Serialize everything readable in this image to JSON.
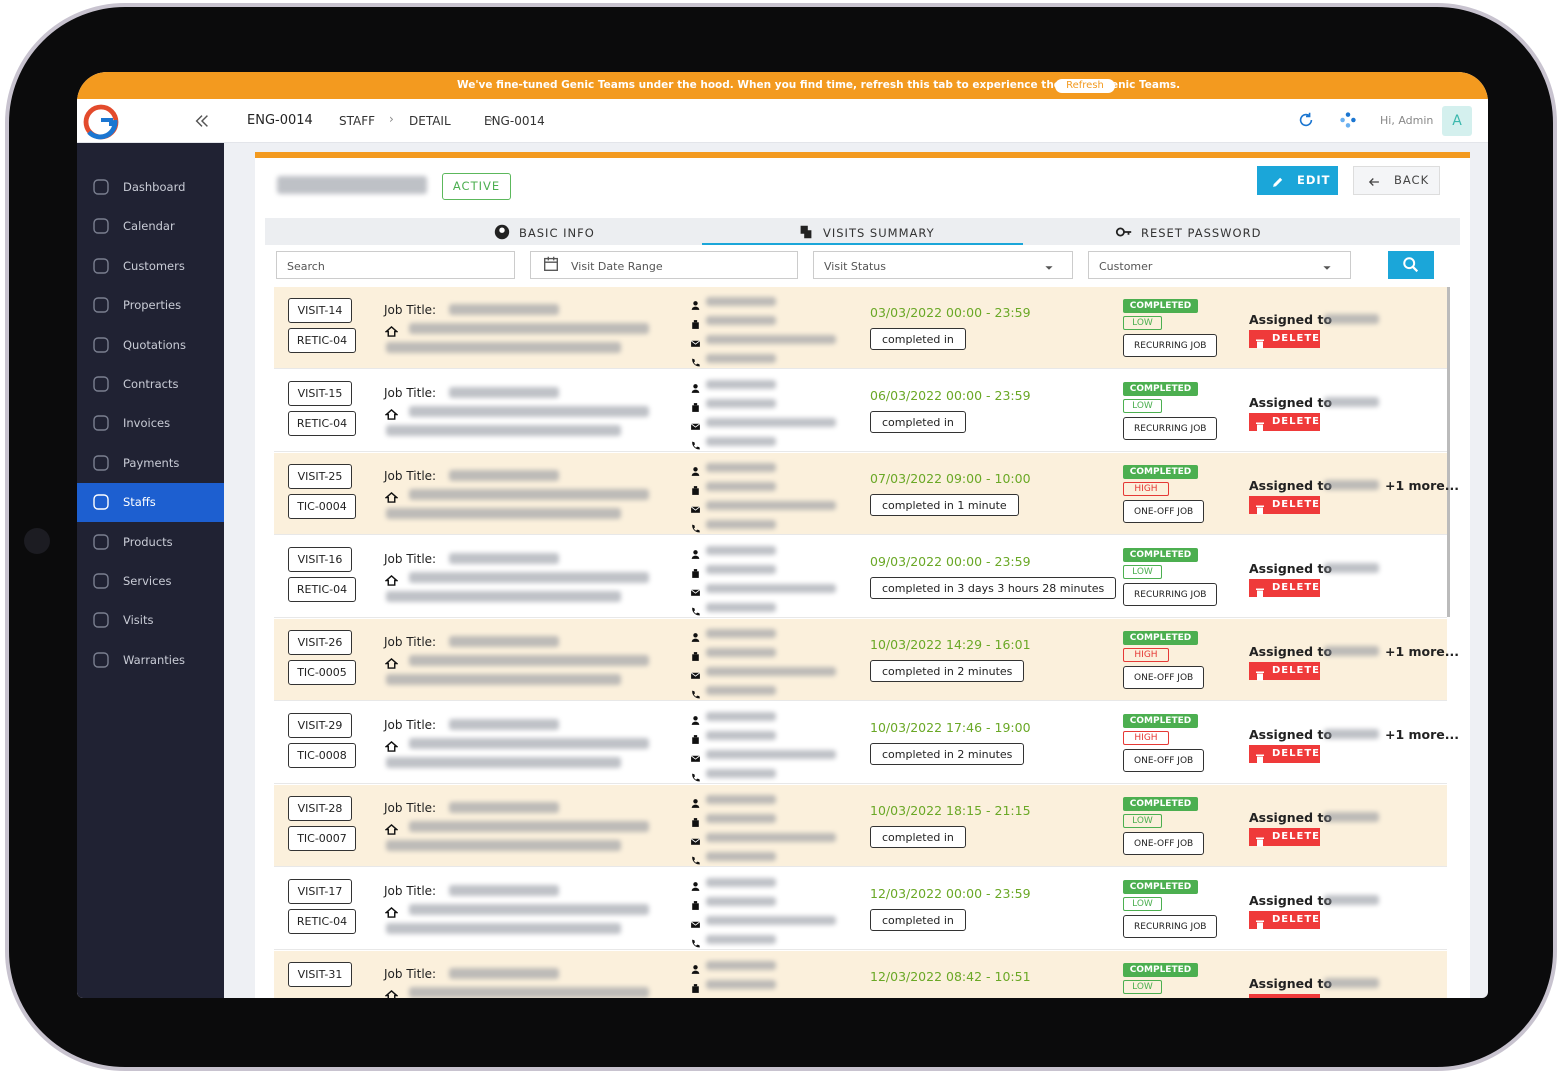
{
  "banner": {
    "message": "We've fine-tuned Genic Teams under the hood. When you find time, refresh this tab to experience the latest Genic Teams.",
    "button": "Refresh"
  },
  "header": {
    "code": "ENG-0014",
    "breadcrumb": [
      "STAFF",
      "DETAIL",
      "ENG-0014"
    ],
    "greeting": "Hi, Admin",
    "avatar": "A"
  },
  "sidebar": {
    "items": [
      "Dashboard",
      "Calendar",
      "Customers",
      "Properties",
      "Quotations",
      "Contracts",
      "Invoices",
      "Payments",
      "Staffs",
      "Products",
      "Services",
      "Visits",
      "Warranties"
    ],
    "active": "Staffs"
  },
  "profile": {
    "status": "ACTIVE",
    "edit": "EDIT",
    "back": "BACK"
  },
  "tabs": {
    "items": [
      "BASIC INFO",
      "VISITS SUMMARY",
      "RESET PASSWORD"
    ],
    "active": "VISITS SUMMARY"
  },
  "filters": {
    "search": "Search",
    "date_range": "Visit Date Range",
    "status": "Visit Status",
    "customer": "Customer"
  },
  "labels": {
    "job_title": "Job Title:",
    "assigned": "Assigned to",
    "delete": "DELETE"
  },
  "visits": [
    {
      "visit": "VISIT-14",
      "ref": "RETIC-04",
      "time": "03/03/2022 00:00 - 23:59",
      "duration": "completed in",
      "status": "COMPLETED",
      "priority": "LOW",
      "job_type": "RECURRING JOB"
    },
    {
      "visit": "VISIT-15",
      "ref": "RETIC-04",
      "time": "06/03/2022 00:00 - 23:59",
      "duration": "completed in",
      "status": "COMPLETED",
      "priority": "LOW",
      "job_type": "RECURRING JOB"
    },
    {
      "visit": "VISIT-25",
      "ref": "TIC-0004",
      "time": "07/03/2022 09:00 - 10:00",
      "duration": "completed in 1 minute",
      "status": "COMPLETED",
      "priority": "HIGH",
      "job_type": "ONE-OFF JOB",
      "more": "+1 more..."
    },
    {
      "visit": "VISIT-16",
      "ref": "RETIC-04",
      "time": "09/03/2022 00:00 - 23:59",
      "duration": "completed in 3 days 3 hours 28 minutes",
      "status": "COMPLETED",
      "priority": "LOW",
      "job_type": "RECURRING JOB"
    },
    {
      "visit": "VISIT-26",
      "ref": "TIC-0005",
      "time": "10/03/2022 14:29 - 16:01",
      "duration": "completed in 2 minutes",
      "status": "COMPLETED",
      "priority": "HIGH",
      "job_type": "ONE-OFF JOB",
      "more": "+1 more..."
    },
    {
      "visit": "VISIT-29",
      "ref": "TIC-0008",
      "time": "10/03/2022 17:46 - 19:00",
      "duration": "completed in 2 minutes",
      "status": "COMPLETED",
      "priority": "HIGH",
      "job_type": "ONE-OFF JOB",
      "more": "+1 more..."
    },
    {
      "visit": "VISIT-28",
      "ref": "TIC-0007",
      "time": "10/03/2022 18:15 - 21:15",
      "duration": "completed in",
      "status": "COMPLETED",
      "priority": "LOW",
      "job_type": "ONE-OFF JOB"
    },
    {
      "visit": "VISIT-17",
      "ref": "RETIC-04",
      "time": "12/03/2022 00:00 - 23:59",
      "duration": "completed in",
      "status": "COMPLETED",
      "priority": "LOW",
      "job_type": "RECURRING JOB"
    },
    {
      "visit": "VISIT-31",
      "time": "12/03/2022 08:42 - 10:51",
      "status": "COMPLETED",
      "priority": "LOW"
    }
  ]
}
